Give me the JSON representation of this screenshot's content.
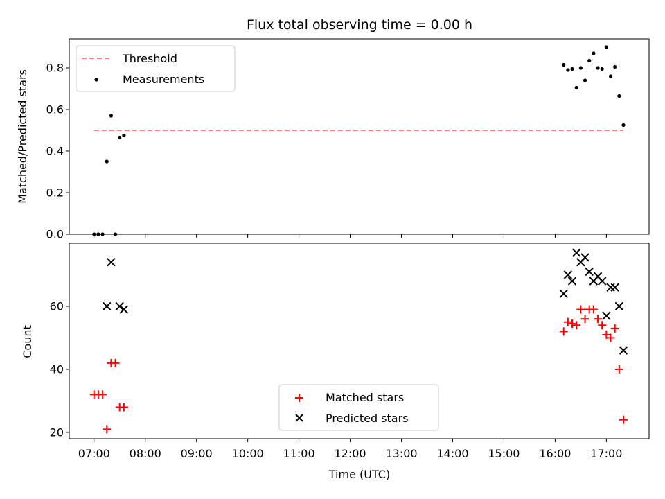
{
  "title": "Flux total observing time = 0.00 h",
  "chart_data": [
    {
      "type": "scatter",
      "ylabel": "Matched/Predicted stars",
      "xlabel": "",
      "xlim": [
        "06:31",
        "17:50"
      ],
      "ylim": [
        0.0,
        0.94
      ],
      "yticks": [
        0.0,
        0.2,
        0.4,
        0.6,
        0.8
      ],
      "legend_placement": "upper-left",
      "threshold": {
        "name": "Threshold",
        "value": 0.5,
        "x_range": [
          "07:00",
          "17:20"
        ],
        "color": "#ff8080",
        "style": "dashed"
      },
      "series": [
        {
          "name": "Measurements",
          "color": "#000000",
          "marker": "dot",
          "points": [
            [
              "07:00",
              0.0
            ],
            [
              "07:05",
              0.0
            ],
            [
              "07:10",
              0.0
            ],
            [
              "07:15",
              0.35
            ],
            [
              "07:20",
              0.57
            ],
            [
              "07:25",
              0.0
            ],
            [
              "07:30",
              0.465
            ],
            [
              "07:35",
              0.475
            ],
            [
              "16:10",
              0.815
            ],
            [
              "16:15",
              0.79
            ],
            [
              "16:20",
              0.795
            ],
            [
              "16:25",
              0.705
            ],
            [
              "16:30",
              0.8
            ],
            [
              "16:35",
              0.74
            ],
            [
              "16:40",
              0.835
            ],
            [
              "16:45",
              0.87
            ],
            [
              "16:50",
              0.8
            ],
            [
              "16:55",
              0.795
            ],
            [
              "17:00",
              0.9
            ],
            [
              "17:05",
              0.76
            ],
            [
              "17:10",
              0.805
            ],
            [
              "17:15",
              0.665
            ],
            [
              "17:20",
              0.525
            ]
          ]
        }
      ]
    },
    {
      "type": "scatter",
      "ylabel": "Count",
      "xlabel": "Time (UTC)",
      "xlim": [
        "06:31",
        "17:50"
      ],
      "ylim": [
        18,
        80
      ],
      "yticks": [
        20,
        40,
        60
      ],
      "xticks": [
        "07:00",
        "08:00",
        "09:00",
        "10:00",
        "11:00",
        "12:00",
        "13:00",
        "14:00",
        "15:00",
        "16:00",
        "17:00"
      ],
      "legend_placement": "lower-center",
      "series": [
        {
          "name": "Matched stars",
          "color": "#ff0000",
          "marker": "plus",
          "points": [
            [
              "07:00",
              32
            ],
            [
              "07:05",
              32
            ],
            [
              "07:10",
              32
            ],
            [
              "07:15",
              21
            ],
            [
              "07:20",
              42
            ],
            [
              "07:25",
              42
            ],
            [
              "07:30",
              28
            ],
            [
              "07:35",
              28
            ],
            [
              "16:10",
              52
            ],
            [
              "16:15",
              55
            ],
            [
              "16:20",
              54.5
            ],
            [
              "16:25",
              54
            ],
            [
              "16:30",
              59
            ],
            [
              "16:35",
              56
            ],
            [
              "16:40",
              59
            ],
            [
              "16:45",
              59
            ],
            [
              "16:50",
              56
            ],
            [
              "16:55",
              54
            ],
            [
              "17:00",
              51
            ],
            [
              "17:05",
              50
            ],
            [
              "17:10",
              53
            ],
            [
              "17:15",
              40
            ],
            [
              "17:20",
              24
            ]
          ]
        },
        {
          "name": "Predicted stars",
          "color": "#000000",
          "marker": "x",
          "points": [
            [
              "07:15",
              60
            ],
            [
              "07:20",
              74
            ],
            [
              "07:30",
              60
            ],
            [
              "07:35",
              59
            ],
            [
              "16:10",
              64
            ],
            [
              "16:15",
              70
            ],
            [
              "16:20",
              68
            ],
            [
              "16:25",
              77
            ],
            [
              "16:30",
              74
            ],
            [
              "16:35",
              75.5
            ],
            [
              "16:40",
              71
            ],
            [
              "16:45",
              68
            ],
            [
              "16:50",
              69.5
            ],
            [
              "16:55",
              68
            ],
            [
              "17:00",
              57
            ],
            [
              "17:05",
              66
            ],
            [
              "17:10",
              66
            ],
            [
              "17:15",
              60
            ],
            [
              "17:20",
              46
            ]
          ]
        }
      ]
    }
  ]
}
